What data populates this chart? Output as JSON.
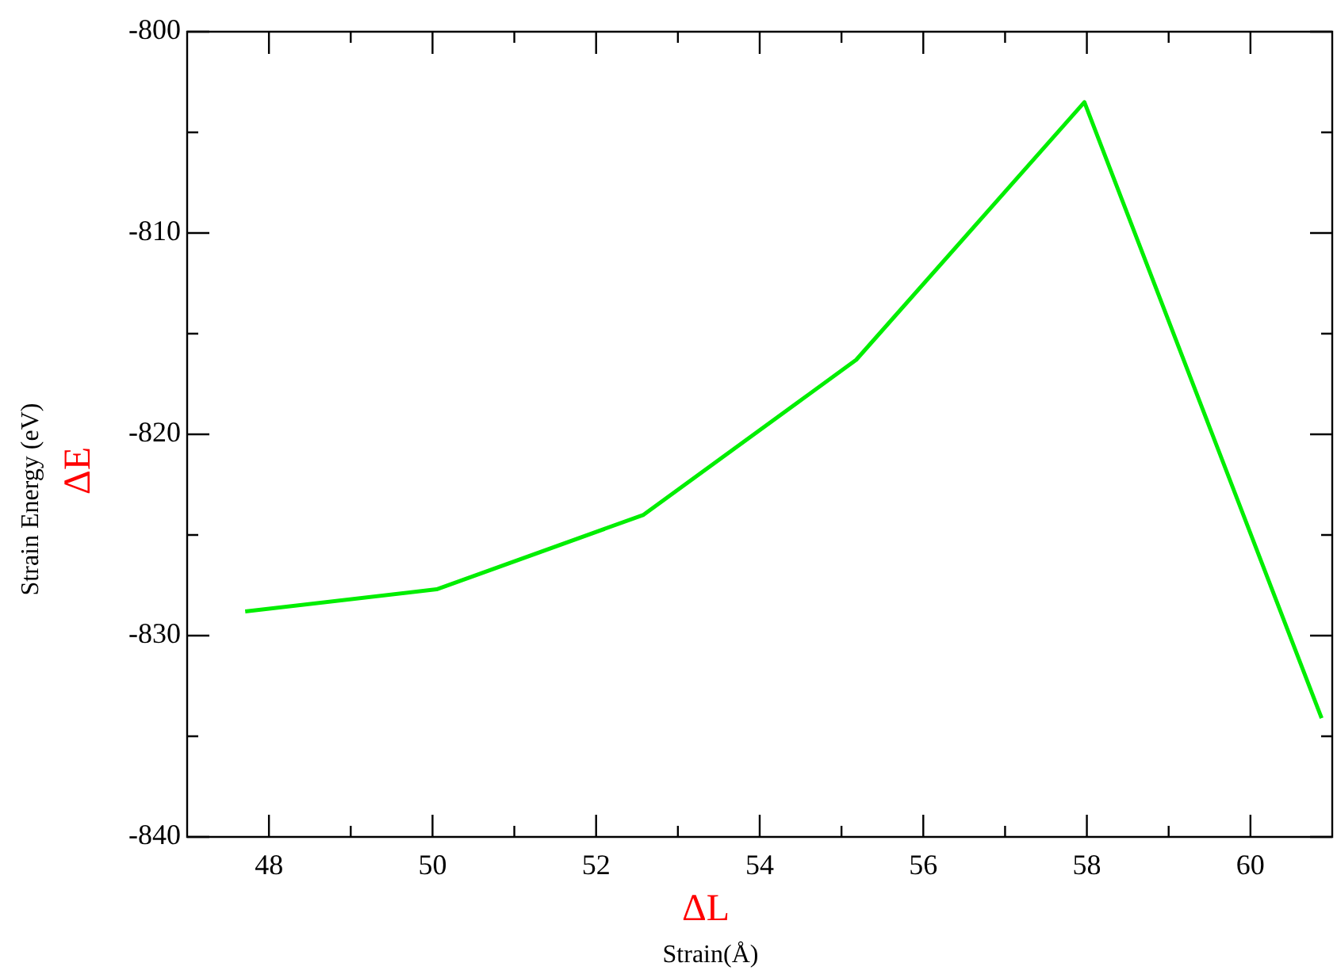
{
  "chart_data": {
    "type": "line",
    "xlabel": "Strain(Å)",
    "ylabel": "Strain Energy (eV)",
    "annotations": [
      "ΔL",
      "ΔE"
    ],
    "x": [
      47.71,
      50.05,
      52.58,
      55.18,
      57.97,
      60.87
    ],
    "series": [
      {
        "color": "#00ee00",
        "values": [
          -828.8,
          -827.7,
          -824.0,
          -816.3,
          -803.5,
          -834.1
        ]
      }
    ],
    "xlim": [
      47,
      61
    ],
    "xticks": [
      48,
      {
        "value": 49,
        "label": null
      },
      50,
      {
        "value": 51,
        "label": null
      },
      52,
      {
        "value": 53,
        "label": null
      },
      54,
      {
        "value": 55,
        "label": null
      },
      56,
      {
        "value": 57,
        "label": null
      },
      58,
      {
        "value": 59,
        "label": null
      },
      60
    ],
    "ylim": [
      -840,
      -800
    ],
    "yticks": [
      -840,
      {
        "value": -835,
        "label": null
      },
      -830,
      {
        "value": -825,
        "label": null
      },
      -820,
      {
        "value": -815,
        "label": null
      },
      -810,
      {
        "value": -805,
        "label": null
      },
      -800
    ],
    "grid": false,
    "legend": false,
    "marker": "none",
    "line_style": "solid"
  }
}
